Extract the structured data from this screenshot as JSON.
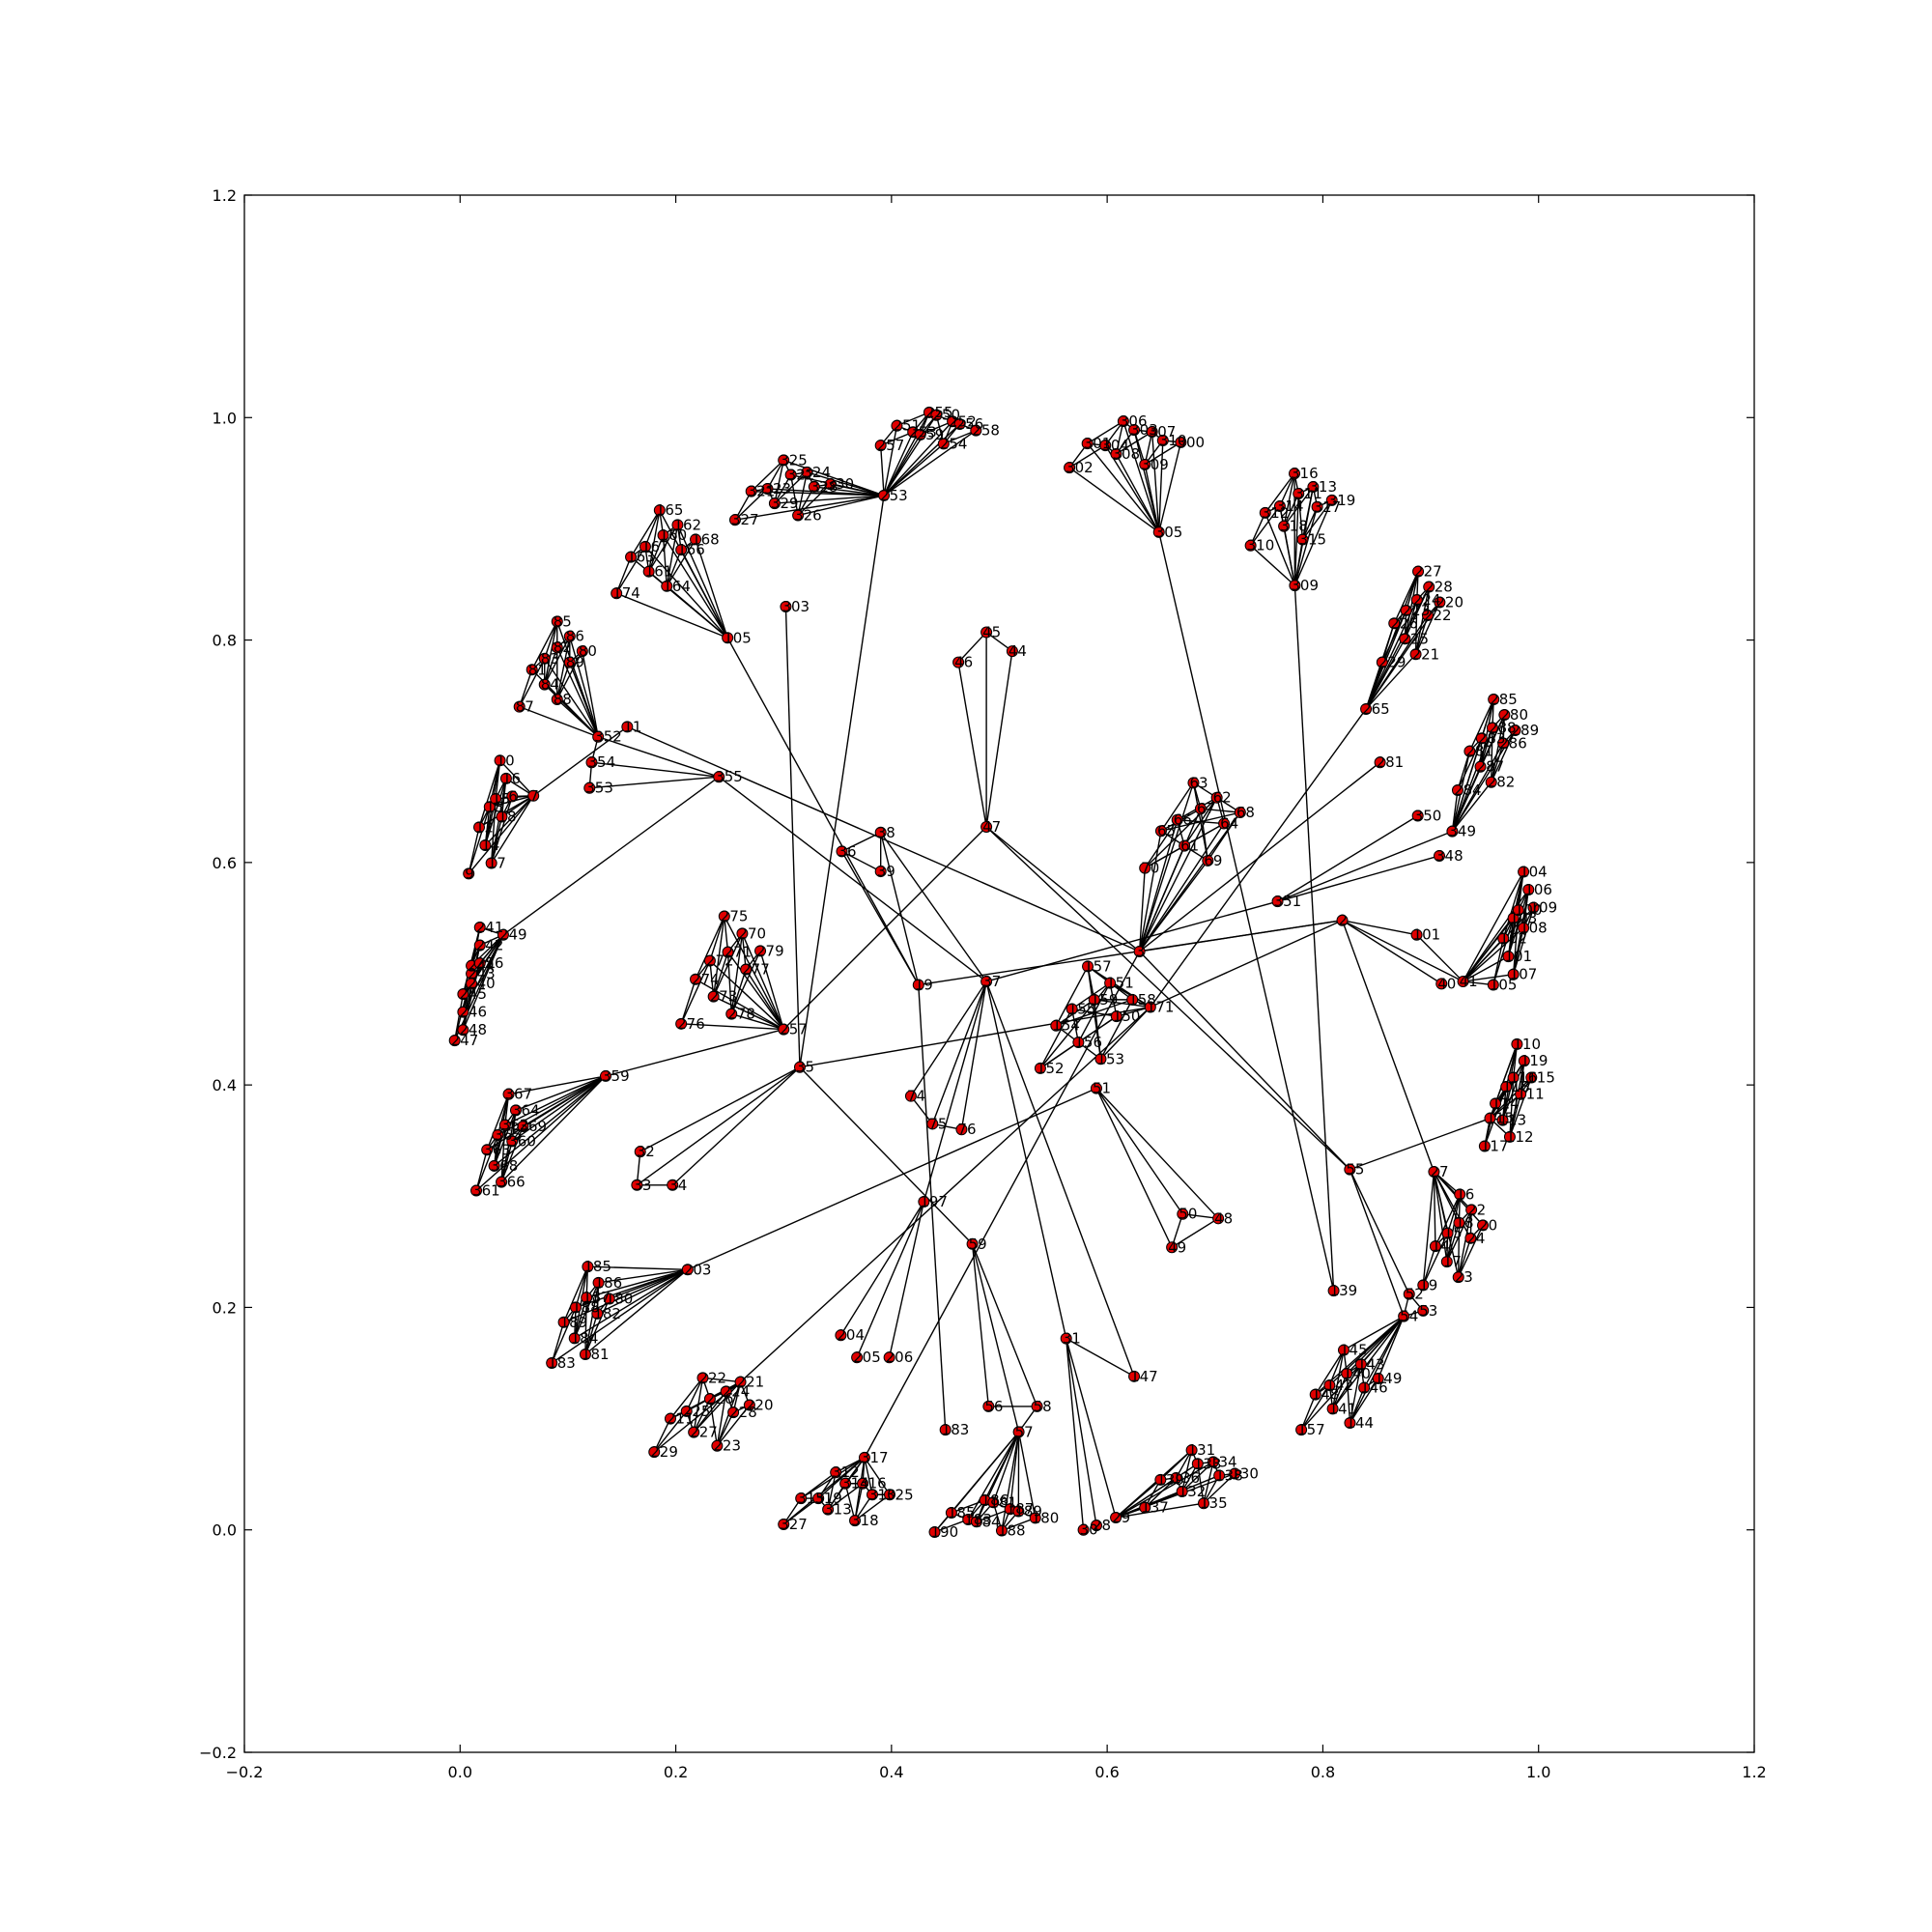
{
  "chart_data": {
    "type": "network-scatter",
    "title": "",
    "xlabel": "",
    "ylabel": "",
    "xlim": [
      -0.2,
      1.2
    ],
    "ylim": [
      -0.2,
      1.2
    ],
    "x_ticks": [
      "−0.2",
      "0.0",
      "0.2",
      "0.4",
      "0.6",
      "0.8",
      "1.0",
      "1.2"
    ],
    "y_ticks": [
      "−0.2",
      "0.0",
      "0.2",
      "0.4",
      "0.6",
      "0.8",
      "1.0",
      "1.2"
    ],
    "grid": false,
    "node_color": "#e00000",
    "edge_color": "#000000",
    "hubs": [
      {
        "label": "11",
        "x": 0.155,
        "y": 0.722
      },
      {
        "label": "355",
        "x": 0.24,
        "y": 0.677
      },
      {
        "label": "105",
        "x": 0.248,
        "y": 0.802
      },
      {
        "label": "303",
        "x": 0.302,
        "y": 0.83
      },
      {
        "label": "253",
        "x": 0.393,
        "y": 0.93
      },
      {
        "label": "305",
        "x": 0.648,
        "y": 0.897
      },
      {
        "label": "309",
        "x": 0.774,
        "y": 0.849
      },
      {
        "label": "265",
        "x": 0.84,
        "y": 0.738
      },
      {
        "label": "281",
        "x": 0.853,
        "y": 0.69
      },
      {
        "label": "349",
        "x": 0.92,
        "y": 0.628
      },
      {
        "label": "351",
        "x": 0.758,
        "y": 0.565
      },
      {
        "label": "2",
        "x": 0.818,
        "y": 0.548
      },
      {
        "label": "101",
        "x": 0.887,
        "y": 0.535
      },
      {
        "label": "115",
        "x": 0.955,
        "y": 0.37
      },
      {
        "label": "55",
        "x": 0.825,
        "y": 0.324
      },
      {
        "label": "27",
        "x": 0.903,
        "y": 0.322
      },
      {
        "label": "139",
        "x": 0.81,
        "y": 0.215
      },
      {
        "label": "147",
        "x": 0.625,
        "y": 0.138
      },
      {
        "label": "31",
        "x": 0.562,
        "y": 0.172
      },
      {
        "label": "59",
        "x": 0.475,
        "y": 0.257
      },
      {
        "label": "183",
        "x": 0.45,
        "y": 0.09
      },
      {
        "label": "317",
        "x": 0.375,
        "y": 0.065
      },
      {
        "label": "221",
        "x": 0.26,
        "y": 0.133
      },
      {
        "label": "197",
        "x": 0.43,
        "y": 0.295
      },
      {
        "label": "203",
        "x": 0.211,
        "y": 0.234
      },
      {
        "label": "359",
        "x": 0.135,
        "y": 0.408
      },
      {
        "label": "249",
        "x": 0.04,
        "y": 0.535
      },
      {
        "label": "35",
        "x": 0.315,
        "y": 0.416
      },
      {
        "label": "37",
        "x": 0.488,
        "y": 0.493
      },
      {
        "label": "47",
        "x": 0.488,
        "y": 0.632
      },
      {
        "label": "3",
        "x": 0.63,
        "y": 0.52
      },
      {
        "label": "171",
        "x": 0.64,
        "y": 0.47
      },
      {
        "label": "51",
        "x": 0.59,
        "y": 0.397
      },
      {
        "label": "257",
        "x": 0.3,
        "y": 0.45
      },
      {
        "label": "19",
        "x": 0.425,
        "y": 0.49
      },
      {
        "label": "38",
        "x": 0.39,
        "y": 0.627
      },
      {
        "label": "352",
        "x": 0.128,
        "y": 0.713
      },
      {
        "label": "354",
        "x": 0.122,
        "y": 0.69
      },
      {
        "label": "353",
        "x": 0.12,
        "y": 0.667
      },
      {
        "label": "7",
        "x": 0.068,
        "y": 0.66
      },
      {
        "label": "45",
        "x": 0.488,
        "y": 0.807
      },
      {
        "label": "44",
        "x": 0.512,
        "y": 0.79
      },
      {
        "label": "46",
        "x": 0.462,
        "y": 0.78
      },
      {
        "label": "350",
        "x": 0.888,
        "y": 0.642
      },
      {
        "label": "348",
        "x": 0.908,
        "y": 0.606
      },
      {
        "label": "40",
        "x": 0.91,
        "y": 0.491
      },
      {
        "label": "41",
        "x": 0.93,
        "y": 0.493
      },
      {
        "label": "52",
        "x": 0.88,
        "y": 0.212
      },
      {
        "label": "54",
        "x": 0.875,
        "y": 0.192
      },
      {
        "label": "53",
        "x": 0.893,
        "y": 0.197
      },
      {
        "label": "48",
        "x": 0.703,
        "y": 0.28
      },
      {
        "label": "49",
        "x": 0.66,
        "y": 0.254
      },
      {
        "label": "50",
        "x": 0.67,
        "y": 0.284
      },
      {
        "label": "56",
        "x": 0.49,
        "y": 0.111
      },
      {
        "label": "57",
        "x": 0.518,
        "y": 0.088
      },
      {
        "label": "58",
        "x": 0.535,
        "y": 0.111
      },
      {
        "label": "30",
        "x": 0.578,
        "y": 0.0
      },
      {
        "label": "28",
        "x": 0.59,
        "y": 0.004
      },
      {
        "label": "29",
        "x": 0.608,
        "y": 0.011
      },
      {
        "label": "74",
        "x": 0.418,
        "y": 0.39
      },
      {
        "label": "75",
        "x": 0.438,
        "y": 0.365
      },
      {
        "label": "76",
        "x": 0.465,
        "y": 0.36
      },
      {
        "label": "204",
        "x": 0.353,
        "y": 0.175
      },
      {
        "label": "205",
        "x": 0.368,
        "y": 0.155
      },
      {
        "label": "206",
        "x": 0.398,
        "y": 0.155
      },
      {
        "label": "32",
        "x": 0.167,
        "y": 0.34
      },
      {
        "label": "33",
        "x": 0.164,
        "y": 0.31
      },
      {
        "label": "34",
        "x": 0.197,
        "y": 0.31
      },
      {
        "label": "36",
        "x": 0.354,
        "y": 0.61
      },
      {
        "label": "39",
        "x": 0.39,
        "y": 0.592
      }
    ],
    "clusters": [
      {
        "labels": [
          "87",
          "81",
          "83",
          "85",
          "84",
          "82",
          "86",
          "88",
          "89",
          "80"
        ],
        "x1": 0.065,
        "y1": 0.75,
        "x2": 0.11,
        "y2": 0.81
      },
      {
        "labels": [
          "174",
          "163",
          "167",
          "165",
          "161",
          "160",
          "162",
          "164",
          "166",
          "168"
        ],
        "x1": 0.155,
        "y1": 0.852,
        "x2": 0.215,
        "y2": 0.91
      },
      {
        "labels": [
          "327",
          "321",
          "323",
          "325",
          "329",
          "322",
          "324",
          "326",
          "328",
          "330"
        ],
        "x1": 0.265,
        "y1": 0.918,
        "x2": 0.34,
        "y2": 0.955
      },
      {
        "labels": [
          "257",
          "251",
          "253",
          "255",
          "259",
          "250",
          "252",
          "254",
          "256",
          "258"
        ],
        "x1": 0.4,
        "y1": 0.985,
        "x2": 0.475,
        "y2": 0.998
      },
      {
        "labels": [
          "302",
          "301",
          "304",
          "306",
          "308",
          "303",
          "307",
          "309",
          "310",
          "300"
        ],
        "x1": 0.575,
        "y1": 0.965,
        "x2": 0.665,
        "y2": 0.99
      },
      {
        "labels": [
          "310",
          "312",
          "314",
          "316",
          "318",
          "311",
          "313",
          "315",
          "317",
          "319"
        ],
        "x1": 0.743,
        "y1": 0.895,
        "x2": 0.805,
        "y2": 0.943
      },
      {
        "labels": [
          "229",
          "226",
          "223",
          "227",
          "225",
          "224",
          "228",
          "221",
          "222",
          "220"
        ],
        "x1": 0.865,
        "y1": 0.79,
        "x2": 0.905,
        "y2": 0.855
      },
      {
        "labels": [
          "284",
          "281",
          "283",
          "285",
          "287",
          "288",
          "280",
          "282",
          "286",
          "289"
        ],
        "x1": 0.935,
        "y1": 0.675,
        "x2": 0.975,
        "y2": 0.74
      },
      {
        "labels": [
          "105",
          "102",
          "103",
          "104",
          "101",
          "100",
          "106",
          "107",
          "108",
          "109"
        ],
        "x1": 0.968,
        "y1": 0.5,
        "x2": 0.992,
        "y2": 0.585
      },
      {
        "labels": [
          "117",
          "114",
          "118",
          "110",
          "113",
          "116",
          "119",
          "112",
          "111",
          "115"
        ],
        "x1": 0.96,
        "y1": 0.355,
        "x2": 0.99,
        "y2": 0.43
      },
      {
        "labels": [
          "19",
          "14",
          "15",
          "16",
          "17",
          "18",
          "22",
          "23",
          "24",
          "20"
        ],
        "x1": 0.903,
        "y1": 0.23,
        "x2": 0.945,
        "y2": 0.295
      },
      {
        "labels": [
          "157",
          "148",
          "142",
          "145",
          "141",
          "140",
          "143",
          "144",
          "146",
          "149"
        ],
        "x1": 0.79,
        "y1": 0.1,
        "x2": 0.848,
        "y2": 0.155
      },
      {
        "labels": [
          "137",
          "139",
          "136",
          "131",
          "132",
          "133",
          "134",
          "135",
          "138",
          "130"
        ],
        "x1": 0.645,
        "y1": 0.03,
        "x2": 0.715,
        "y2": 0.065
      },
      {
        "labels": [
          "190",
          "185",
          "183",
          "186",
          "184",
          "181",
          "187",
          "188",
          "189",
          "180"
        ],
        "x1": 0.45,
        "y1": 0.008,
        "x2": 0.53,
        "y2": 0.02
      },
      {
        "labels": [
          "327",
          "315",
          "319",
          "312",
          "313",
          "314",
          "316",
          "318",
          "310",
          "325"
        ],
        "x1": 0.31,
        "y1": 0.015,
        "x2": 0.395,
        "y2": 0.045
      },
      {
        "labels": [
          "229",
          "211",
          "225",
          "222",
          "227",
          "226",
          "224",
          "223",
          "228",
          "220"
        ],
        "x1": 0.19,
        "y1": 0.08,
        "x2": 0.265,
        "y2": 0.13
      },
      {
        "labels": [
          "183",
          "189",
          "188",
          "185",
          "184",
          "187",
          "186",
          "181",
          "182",
          "180"
        ],
        "x1": 0.095,
        "y1": 0.16,
        "x2": 0.135,
        "y2": 0.23
      },
      {
        "labels": [
          "361",
          "363",
          "365",
          "367",
          "368",
          "362",
          "364",
          "366",
          "360",
          "369"
        ],
        "x1": 0.025,
        "y1": 0.315,
        "x2": 0.055,
        "y2": 0.385
      },
      {
        "labels": [
          "247",
          "245",
          "243",
          "241",
          "246",
          "244",
          "242",
          "248",
          "240",
          "256"
        ],
        "x1": 0.005,
        "y1": 0.45,
        "x2": 0.015,
        "y2": 0.535
      },
      {
        "labels": [
          "9",
          "12",
          "13",
          "10",
          "14",
          "15",
          "16",
          "17",
          "18",
          "6"
        ],
        "x1": 0.018,
        "y1": 0.6,
        "x2": 0.045,
        "y2": 0.685
      },
      {
        "labels": [
          "276",
          "274",
          "272",
          "275",
          "273",
          "271",
          "270",
          "278",
          "277",
          "279"
        ],
        "x1": 0.215,
        "y1": 0.465,
        "x2": 0.275,
        "y2": 0.545
      },
      {
        "labels": [
          "70",
          "65",
          "66",
          "63",
          "61",
          "67",
          "62",
          "69",
          "64",
          "68"
        ],
        "x1": 0.645,
        "y1": 0.605,
        "x2": 0.72,
        "y2": 0.665
      },
      {
        "labels": [
          "152",
          "154",
          "155",
          "157",
          "156",
          "159",
          "151",
          "153",
          "150",
          "158"
        ],
        "x1": 0.548,
        "y1": 0.425,
        "x2": 0.62,
        "y2": 0.5
      }
    ],
    "edges": [
      [
        "11",
        "3"
      ],
      [
        "11",
        "7"
      ],
      [
        "355",
        "353"
      ],
      [
        "355",
        "249"
      ],
      [
        "355",
        "37"
      ],
      [
        "105",
        "19"
      ],
      [
        "303",
        "35"
      ],
      [
        "253",
        "35"
      ],
      [
        "305",
        "139"
      ],
      [
        "309",
        "139"
      ],
      [
        "265",
        "171"
      ],
      [
        "281",
        "3"
      ],
      [
        "349",
        "351"
      ],
      [
        "350",
        "351"
      ],
      [
        "348",
        "351"
      ],
      [
        "351",
        "37"
      ],
      [
        "2",
        "101"
      ],
      [
        "2",
        "40"
      ],
      [
        "2",
        "41"
      ],
      [
        "2",
        "27"
      ],
      [
        "2",
        "171"
      ],
      [
        "2",
        "3"
      ],
      [
        "101",
        "41"
      ],
      [
        "115",
        "55"
      ],
      [
        "55",
        "3"
      ],
      [
        "55",
        "52"
      ],
      [
        "55",
        "54"
      ],
      [
        "52",
        "54"
      ],
      [
        "52",
        "53"
      ],
      [
        "54",
        "53"
      ],
      [
        "59",
        "35"
      ],
      [
        "59",
        "56"
      ],
      [
        "59",
        "57"
      ],
      [
        "59",
        "58"
      ],
      [
        "56",
        "58"
      ],
      [
        "57",
        "58"
      ],
      [
        "183",
        "19"
      ],
      [
        "317",
        "3"
      ],
      [
        "221",
        "171"
      ],
      [
        "197",
        "37"
      ],
      [
        "197",
        "204"
      ],
      [
        "197",
        "205"
      ],
      [
        "197",
        "206"
      ],
      [
        "203",
        "51"
      ],
      [
        "359",
        "257"
      ],
      [
        "35",
        "32"
      ],
      [
        "35",
        "33"
      ],
      [
        "35",
        "34"
      ],
      [
        "32",
        "33"
      ],
      [
        "33",
        "34"
      ],
      [
        "35",
        "171"
      ],
      [
        "37",
        "74"
      ],
      [
        "37",
        "75"
      ],
      [
        "37",
        "76"
      ],
      [
        "74",
        "75"
      ],
      [
        "75",
        "76"
      ],
      [
        "37",
        "147"
      ],
      [
        "37",
        "31"
      ],
      [
        "37",
        "38"
      ],
      [
        "31",
        "30"
      ],
      [
        "31",
        "28"
      ],
      [
        "31",
        "29"
      ],
      [
        "51",
        "48"
      ],
      [
        "51",
        "49"
      ],
      [
        "51",
        "50"
      ],
      [
        "48",
        "49"
      ],
      [
        "48",
        "50"
      ],
      [
        "49",
        "50"
      ],
      [
        "47",
        "257"
      ],
      [
        "47",
        "45"
      ],
      [
        "47",
        "44"
      ],
      [
        "47",
        "46"
      ],
      [
        "44",
        "45"
      ],
      [
        "45",
        "46"
      ],
      [
        "47",
        "3"
      ],
      [
        "47",
        "55"
      ],
      [
        "19",
        "38"
      ],
      [
        "19",
        "36"
      ],
      [
        "36",
        "39"
      ],
      [
        "38",
        "39"
      ],
      [
        "36",
        "38"
      ],
      [
        "19",
        "2"
      ],
      [
        "352",
        "354"
      ],
      [
        "354",
        "353"
      ],
      [
        "352",
        "355"
      ],
      [
        "354",
        "355"
      ],
      [
        "31",
        "147"
      ]
    ]
  }
}
